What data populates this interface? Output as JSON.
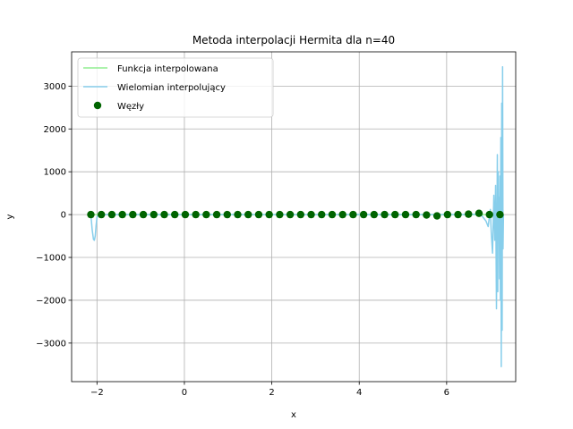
{
  "chart_data": {
    "type": "line",
    "title": "Metoda interpolacji Hermita dla n=40",
    "xlabel": "x",
    "ylabel": "y",
    "xlim": [
      -2.58,
      7.58
    ],
    "ylim": [
      -3900,
      3800
    ],
    "xticks": [
      -2,
      0,
      2,
      4,
      6
    ],
    "yticks": [
      -3000,
      -2000,
      -1000,
      0,
      1000,
      2000,
      3000
    ],
    "grid": true,
    "legend": "top-left",
    "series": [
      {
        "name": "Funkcja interpolowana",
        "color": "#90ee90",
        "x": [
          -2.14,
          -1.5,
          -0.5,
          0.5,
          1.5,
          2.5,
          3.5,
          4.5,
          5.5,
          6.0,
          6.5,
          7.0,
          7.3
        ],
        "y": [
          0,
          0,
          0,
          0,
          0,
          0,
          0,
          0,
          0,
          0,
          0,
          0,
          0
        ]
      },
      {
        "name": "Wielomian interpolujący",
        "color": "#87ceeb",
        "x": [
          -2.14,
          -2.11,
          -2.08,
          -2.06,
          -2.04,
          -2.02,
          -2.0,
          -1.96,
          -1.9,
          -1.5,
          0,
          3,
          6,
          6.5,
          6.7,
          6.8,
          6.9,
          6.95,
          7.0,
          7.02,
          7.05,
          7.08,
          7.1,
          7.12,
          7.14,
          7.16,
          7.17,
          7.18,
          7.19,
          7.2,
          7.21,
          7.22,
          7.23,
          7.24,
          7.25,
          7.26,
          7.27,
          7.28,
          7.29,
          7.3
        ],
        "y": [
          0,
          -350,
          -580,
          -600,
          -500,
          -250,
          -60,
          0,
          0,
          0,
          0,
          0,
          0,
          0,
          10,
          -20,
          -150,
          -280,
          120,
          -400,
          -900,
          450,
          -600,
          680,
          -2200,
          1400,
          -1800,
          1000,
          -500,
          400,
          -1500,
          900,
          -2000,
          1800,
          -3550,
          2600,
          -2700,
          3450,
          -800,
          0
        ]
      },
      {
        "name": "Węzły",
        "color": "#006400",
        "type": "scatter",
        "x": [
          -2.14,
          -1.9,
          -1.66,
          -1.42,
          -1.18,
          -0.94,
          -0.7,
          -0.46,
          -0.22,
          0.02,
          0.26,
          0.5,
          0.74,
          0.98,
          1.22,
          1.46,
          1.7,
          1.94,
          2.18,
          2.42,
          2.66,
          2.9,
          3.14,
          3.38,
          3.62,
          3.86,
          4.1,
          4.34,
          4.58,
          4.82,
          5.06,
          5.3,
          5.54,
          5.78,
          6.02,
          6.26,
          6.5,
          6.74,
          6.98,
          7.22
        ],
        "y": [
          0,
          0,
          0,
          0,
          0,
          0,
          0,
          0,
          0,
          0,
          0,
          0,
          0,
          0,
          0,
          0,
          0,
          0,
          0,
          0,
          0,
          0,
          0,
          0,
          0,
          0,
          0,
          0,
          0,
          0,
          0,
          0,
          -10,
          -30,
          0,
          0,
          10,
          30,
          0,
          0
        ]
      }
    ]
  }
}
